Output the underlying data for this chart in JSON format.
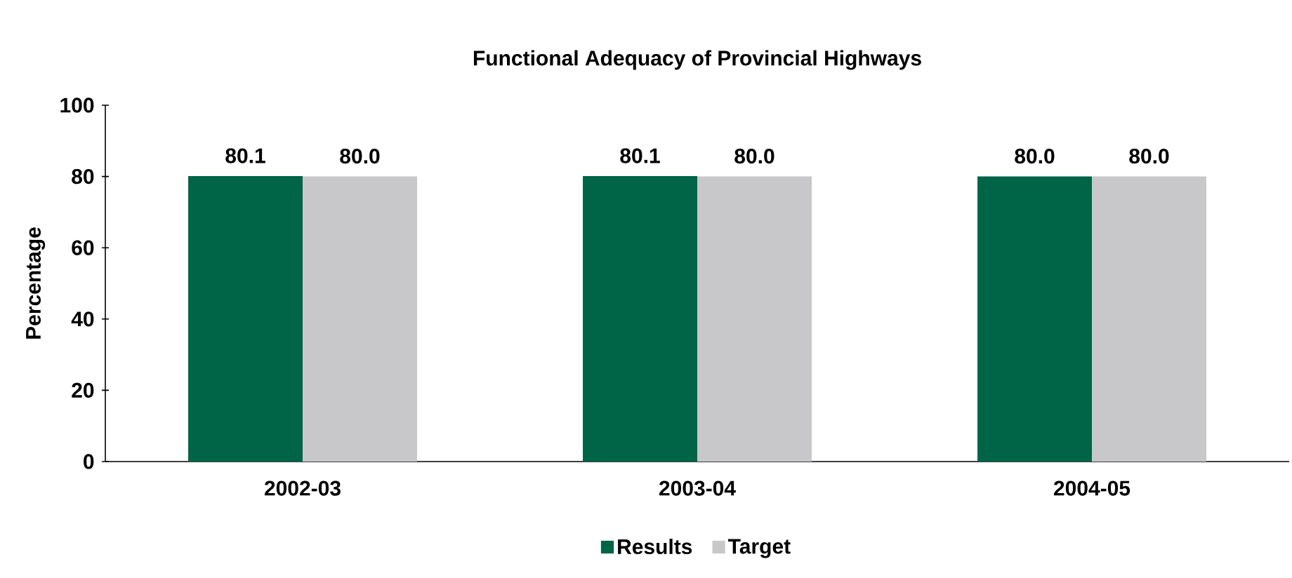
{
  "chart_data": {
    "type": "bar",
    "title": "Functional Adequacy of Provincial Highways",
    "ylabel": "Percentage",
    "categories": [
      "2002-03",
      "2003-04",
      "2004-05"
    ],
    "series": [
      {
        "name": "Results",
        "color": "#006446",
        "values": [
          80.1,
          80.1,
          80.0
        ],
        "value_labels": [
          "80.1",
          "80.1",
          "80.0"
        ]
      },
      {
        "name": "Target",
        "color": "#c8c8ca",
        "values": [
          80.0,
          80.0,
          80.0
        ],
        "value_labels": [
          "80.0",
          "80.0",
          "80.0"
        ]
      }
    ],
    "ylim": [
      0,
      100
    ],
    "yticks": [
      0,
      20,
      40,
      60,
      80,
      100
    ],
    "legend": "bottom"
  }
}
